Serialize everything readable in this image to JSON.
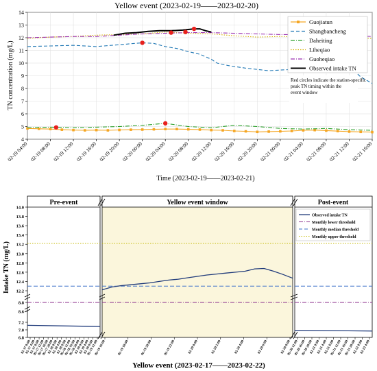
{
  "chart_data": [
    {
      "type": "line",
      "title": "Yellow event (2023-02-19——2023-02-20)",
      "xlabel": "Time (2023-02-19——2023-02-21)",
      "ylabel": "TN concentration (mg/L)",
      "ylim": [
        4,
        14
      ],
      "y_ticks": [
        4,
        5,
        6,
        7,
        8,
        9,
        10,
        11,
        12,
        13,
        14
      ],
      "x_ticks": [
        "02-19 04:00",
        "02-19 08:00",
        "02-19 12:00",
        "02-19 16:00",
        "02-19 20:00",
        "02-20 00:00",
        "02-20 04:00",
        "02-20 08:00",
        "02-20 12:00",
        "02-20 16:00",
        "02-20 20:00",
        "02-21 00:00",
        "02-21 04:00",
        "02-21 08:00",
        "02-21 12:00",
        "02-21 16:00"
      ],
      "x_unit": "hours since 2023-02-19 04:00",
      "xlim": [
        0,
        60
      ],
      "grid": true,
      "legend_position": "top-right",
      "annotation": "Red circles indicate the station-specific peak TN timing within the event window",
      "series": [
        {
          "name": "Guojiatun",
          "color": "#f5a623",
          "style": "solid-square",
          "x": [
            0,
            2,
            4,
            6,
            8,
            10,
            12,
            14,
            16,
            18,
            20,
            22,
            24,
            26,
            28,
            30,
            32,
            34,
            36,
            38,
            40,
            42,
            44,
            46,
            48,
            50,
            52,
            54,
            56,
            58,
            60
          ],
          "y": [
            4.85,
            4.82,
            4.8,
            4.75,
            4.72,
            4.7,
            4.72,
            4.7,
            4.73,
            4.75,
            4.76,
            4.78,
            4.8,
            4.8,
            4.78,
            4.76,
            4.72,
            4.7,
            4.65,
            4.62,
            4.58,
            4.6,
            4.62,
            4.65,
            4.7,
            4.72,
            4.68,
            4.64,
            4.6,
            4.58,
            4.56
          ]
        },
        {
          "name": "Shangbancheng",
          "color": "#1f77b4",
          "style": "dashed",
          "x": [
            0,
            4,
            8,
            12,
            16,
            20,
            22,
            24,
            26,
            28,
            30,
            32,
            33,
            35,
            38,
            42,
            46,
            50,
            52,
            54,
            56,
            58,
            60
          ],
          "y": [
            11.3,
            11.35,
            11.4,
            11.3,
            11.45,
            11.6,
            11.55,
            11.3,
            11.15,
            10.9,
            10.7,
            10.3,
            10.0,
            9.8,
            9.6,
            9.4,
            9.5,
            9.55,
            9.7,
            10.1,
            9.8,
            8.9,
            8.4
          ]
        },
        {
          "name": "Daheiting",
          "color": "#2ca02c",
          "style": "dashdot",
          "x": [
            0,
            4,
            8,
            12,
            16,
            20,
            24,
            28,
            32,
            36,
            40,
            44,
            48,
            52,
            56,
            60
          ],
          "y": [
            4.9,
            4.95,
            4.9,
            4.95,
            5.0,
            5.1,
            5.25,
            5.0,
            4.9,
            5.1,
            5.0,
            4.85,
            4.8,
            4.85,
            4.75,
            4.7
          ]
        },
        {
          "name": "Liheqiao",
          "color": "#d4b000",
          "style": "dotted",
          "x": [
            0,
            4,
            8,
            12,
            16,
            20,
            24,
            28,
            32,
            36,
            40,
            44,
            48,
            52,
            56,
            60
          ],
          "y": [
            11.95,
            12.05,
            12.1,
            12.2,
            12.25,
            12.3,
            12.45,
            12.35,
            12.3,
            12.15,
            12.05,
            12.1,
            12.05,
            11.95,
            12.0,
            11.95
          ]
        },
        {
          "name": "Guoheqiao",
          "color": "#9b30b0",
          "style": "dashdot",
          "x": [
            0,
            4,
            8,
            12,
            16,
            20,
            24,
            28,
            32,
            36,
            40,
            44,
            48,
            52,
            56,
            60
          ],
          "y": [
            12.0,
            12.05,
            12.1,
            12.1,
            12.2,
            12.3,
            12.35,
            12.4,
            12.4,
            12.35,
            12.3,
            12.25,
            12.25,
            12.2,
            12.15,
            12.1
          ]
        },
        {
          "name": "Observed intake TN",
          "color": "#000000",
          "style": "solid-thick",
          "x": [
            15,
            17,
            19,
            21,
            23,
            25,
            27,
            28,
            29,
            30,
            31,
            32
          ],
          "y": [
            12.2,
            12.35,
            12.4,
            12.5,
            12.55,
            12.55,
            12.6,
            12.65,
            12.7,
            12.7,
            12.55,
            12.45
          ]
        }
      ],
      "peaks": [
        {
          "station": "Guojiatun",
          "x": 5,
          "y": 4.93
        },
        {
          "station": "Shangbancheng",
          "x": 20,
          "y": 11.6
        },
        {
          "station": "Daheiting",
          "x": 24,
          "y": 5.25
        },
        {
          "station": "Liheqiao",
          "x": 25,
          "y": 12.4
        },
        {
          "station": "Guoheqiao",
          "x": 27.5,
          "y": 12.45
        },
        {
          "station": "Observed intake TN",
          "x": 29,
          "y": 12.7
        }
      ]
    },
    {
      "type": "line",
      "title": "",
      "xlabel": "Yellow event (2023-02-17——2023-02-22)",
      "ylabel": "Intake TN (mg/L)",
      "panel_labels": {
        "pre": "Pre-event",
        "event": "Yellow event window",
        "post": "Post-event"
      },
      "y_ticks": [
        "6.8",
        "7.0",
        "7.2",
        "8.6",
        "8.8",
        "12.2",
        "12.4",
        "12.6",
        "12.8",
        "13.0",
        "13.2",
        "13.4",
        "13.6",
        "13.8",
        "14.0"
      ],
      "y_segments": [
        [
          6.8,
          7.2
        ],
        [
          8.6,
          8.8
        ],
        [
          12.2,
          14.0
        ]
      ],
      "thresholds": {
        "lower": 8.8,
        "median": 12.3,
        "upper": 13.22
      },
      "legend_position": "top-right",
      "legend": [
        "Observed intake TN",
        "Monthly lower threshold",
        "Monthly median threshold",
        "Monthly upper threshold"
      ],
      "colors": {
        "observed": "#1f3a7a",
        "lower": "#8b2d8b",
        "median": "#3a6fc9",
        "upper": "#c4b800",
        "event_bg": "#fbf6dc"
      },
      "pre_ticks": [
        "02-17 0:00",
        "02-17 4:00",
        "02-17 8:00",
        "02-17 12:00",
        "02-17 16:00",
        "02-17 20:00",
        "02-18 0:00",
        "02-18 4:00",
        "02-18 8:00",
        "02-18 12:00",
        "02-18 16:00",
        "02-18 20:00",
        "02-19 0:00",
        "02-19 4:00",
        "02-19 8:00",
        "02-19 12:00"
      ],
      "event_ticks": [
        "02-19 16:00",
        "02-19 18:00",
        "02-19 20:00",
        "02-19 22:00",
        "02-20 0:00",
        "02-20 2:00",
        "02-20 4:00",
        "02-20 6:00",
        "02-20 8:00"
      ],
      "post_ticks": [
        "02-20 12:00",
        "02-20 16:00",
        "02-20 20:00",
        "02-21 0:00",
        "02-21 4:00",
        "02-21 8:00",
        "02-21 12:00",
        "02-21 16:00",
        "02-21 20:00",
        "02-22 0:00",
        "02-22 4:00"
      ],
      "pre_series": {
        "x": [
          0,
          1
        ],
        "y": [
          7.12,
          7.09
        ]
      },
      "event_series": {
        "x": [
          0,
          0.05,
          0.1,
          0.15,
          0.2,
          0.25,
          0.3,
          0.35,
          0.4,
          0.45,
          0.5,
          0.55,
          0.6,
          0.65,
          0.7,
          0.75,
          0.8,
          0.85,
          0.9,
          0.95,
          1.0
        ],
        "y": [
          12.22,
          12.28,
          12.31,
          12.33,
          12.35,
          12.37,
          12.4,
          12.43,
          12.45,
          12.48,
          12.51,
          12.54,
          12.56,
          12.58,
          12.6,
          12.62,
          12.67,
          12.68,
          12.62,
          12.55,
          12.47
        ]
      },
      "post_series": {
        "x": [
          0,
          1
        ],
        "y": [
          6.99,
          6.97
        ]
      }
    }
  ]
}
